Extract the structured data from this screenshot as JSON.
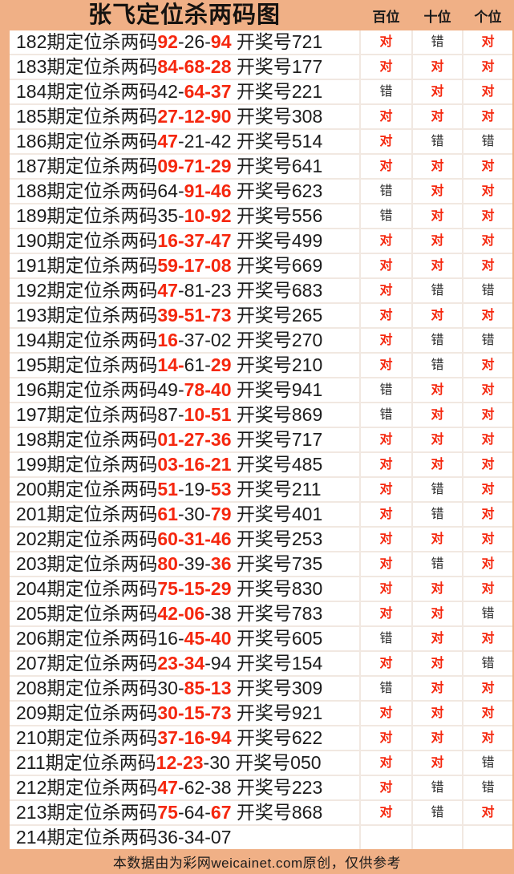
{
  "title": "张飞定位杀两码图",
  "columns": [
    {
      "key": "bai",
      "label": "百位"
    },
    {
      "key": "shi",
      "label": "十位"
    },
    {
      "key": "ge",
      "label": "个位"
    }
  ],
  "strings": {
    "kill_prefix": "期定位杀两码",
    "draw_prefix": "开奖号",
    "correct": "对",
    "wrong": "错"
  },
  "colors": {
    "background": "#f0b086",
    "cell": "#ffffff",
    "divider": "#f1e8e1",
    "red": "#f5270e",
    "text": "#1c1c1c"
  },
  "rows": [
    {
      "p": "182",
      "segs": [
        [
          "92",
          "r"
        ],
        [
          "-",
          "k"
        ],
        [
          "26",
          "k"
        ],
        [
          "-",
          "k"
        ],
        [
          "94",
          "r"
        ]
      ],
      "draw": "721",
      "res": [
        "对",
        "错",
        "对"
      ]
    },
    {
      "p": "183",
      "segs": [
        [
          "84",
          "r"
        ],
        [
          "-",
          "r"
        ],
        [
          "68",
          "r"
        ],
        [
          "-",
          "r"
        ],
        [
          "28",
          "r"
        ]
      ],
      "draw": "177",
      "res": [
        "对",
        "对",
        "对"
      ]
    },
    {
      "p": "184",
      "segs": [
        [
          "42",
          "k"
        ],
        [
          "-",
          "k"
        ],
        [
          "64",
          "r"
        ],
        [
          "-",
          "r"
        ],
        [
          "37",
          "r"
        ]
      ],
      "draw": "221",
      "res": [
        "错",
        "对",
        "对"
      ]
    },
    {
      "p": "185",
      "segs": [
        [
          "27",
          "r"
        ],
        [
          "-",
          "r"
        ],
        [
          "12",
          "r"
        ],
        [
          "-",
          "r"
        ],
        [
          "90",
          "r"
        ]
      ],
      "draw": "308",
      "res": [
        "对",
        "对",
        "对"
      ]
    },
    {
      "p": "186",
      "segs": [
        [
          "47",
          "r"
        ],
        [
          "-",
          "k"
        ],
        [
          "21",
          "k"
        ],
        [
          "-",
          "k"
        ],
        [
          "42",
          "k"
        ]
      ],
      "draw": "514",
      "res": [
        "对",
        "错",
        "错"
      ]
    },
    {
      "p": "187",
      "segs": [
        [
          "09",
          "r"
        ],
        [
          "-",
          "r"
        ],
        [
          "71",
          "r"
        ],
        [
          "-",
          "r"
        ],
        [
          "29",
          "r"
        ]
      ],
      "draw": "641",
      "res": [
        "对",
        "对",
        "对"
      ]
    },
    {
      "p": "188",
      "segs": [
        [
          "64",
          "k"
        ],
        [
          "-",
          "k"
        ],
        [
          "91",
          "r"
        ],
        [
          "-",
          "r"
        ],
        [
          "46",
          "r"
        ]
      ],
      "draw": "623",
      "res": [
        "错",
        "对",
        "对"
      ]
    },
    {
      "p": "189",
      "segs": [
        [
          "35",
          "k"
        ],
        [
          "-",
          "k"
        ],
        [
          "10",
          "r"
        ],
        [
          "-",
          "r"
        ],
        [
          "92",
          "r"
        ]
      ],
      "draw": "556",
      "res": [
        "错",
        "对",
        "对"
      ]
    },
    {
      "p": "190",
      "segs": [
        [
          "16",
          "r"
        ],
        [
          "-",
          "r"
        ],
        [
          "37",
          "r"
        ],
        [
          "-",
          "r"
        ],
        [
          "47",
          "r"
        ]
      ],
      "draw": "499",
      "res": [
        "对",
        "对",
        "对"
      ]
    },
    {
      "p": "191",
      "segs": [
        [
          "59",
          "r"
        ],
        [
          "-",
          "r"
        ],
        [
          "17",
          "r"
        ],
        [
          "-",
          "r"
        ],
        [
          "08",
          "r"
        ]
      ],
      "draw": "669",
      "res": [
        "对",
        "对",
        "对"
      ]
    },
    {
      "p": "192",
      "segs": [
        [
          "47",
          "r"
        ],
        [
          "-",
          "k"
        ],
        [
          "81",
          "k"
        ],
        [
          "-",
          "k"
        ],
        [
          "23",
          "k"
        ]
      ],
      "draw": "683",
      "res": [
        "对",
        "错",
        "错"
      ]
    },
    {
      "p": "193",
      "segs": [
        [
          "39",
          "r"
        ],
        [
          "-",
          "r"
        ],
        [
          "51",
          "r"
        ],
        [
          "-",
          "r"
        ],
        [
          "73",
          "r"
        ]
      ],
      "draw": "265",
      "res": [
        "对",
        "对",
        "对"
      ]
    },
    {
      "p": "194",
      "segs": [
        [
          "16",
          "r"
        ],
        [
          "-",
          "k"
        ],
        [
          "37",
          "k"
        ],
        [
          "-",
          "k"
        ],
        [
          "02",
          "k"
        ]
      ],
      "draw": "270",
      "res": [
        "对",
        "错",
        "错"
      ]
    },
    {
      "p": "195",
      "segs": [
        [
          "14",
          "r"
        ],
        [
          "-",
          "r"
        ],
        [
          "61",
          "k"
        ],
        [
          "-",
          "k"
        ],
        [
          "29",
          "r"
        ]
      ],
      "draw": "210",
      "res": [
        "对",
        "错",
        "对"
      ]
    },
    {
      "p": "196",
      "segs": [
        [
          "49",
          "k"
        ],
        [
          "-",
          "k"
        ],
        [
          "78",
          "r"
        ],
        [
          "-",
          "r"
        ],
        [
          "40",
          "r"
        ]
      ],
      "draw": "941",
      "res": [
        "错",
        "对",
        "对"
      ]
    },
    {
      "p": "197",
      "segs": [
        [
          "87",
          "k"
        ],
        [
          "-",
          "k"
        ],
        [
          "10",
          "r"
        ],
        [
          "-",
          "r"
        ],
        [
          "51",
          "r"
        ]
      ],
      "draw": "869",
      "res": [
        "错",
        "对",
        "对"
      ]
    },
    {
      "p": "198",
      "segs": [
        [
          "01",
          "r"
        ],
        [
          "-",
          "r"
        ],
        [
          "27",
          "r"
        ],
        [
          "-",
          "r"
        ],
        [
          "36",
          "r"
        ]
      ],
      "draw": "717",
      "res": [
        "对",
        "对",
        "对"
      ]
    },
    {
      "p": "199",
      "segs": [
        [
          "03",
          "r"
        ],
        [
          "-",
          "r"
        ],
        [
          "16",
          "r"
        ],
        [
          "-",
          "r"
        ],
        [
          "21",
          "r"
        ]
      ],
      "draw": "485",
      "res": [
        "对",
        "对",
        "对"
      ]
    },
    {
      "p": "200",
      "segs": [
        [
          "51",
          "r"
        ],
        [
          "-",
          "k"
        ],
        [
          "19",
          "k"
        ],
        [
          "-",
          "k"
        ],
        [
          "53",
          "r"
        ]
      ],
      "draw": "211",
      "res": [
        "对",
        "错",
        "对"
      ]
    },
    {
      "p": "201",
      "segs": [
        [
          "61",
          "r"
        ],
        [
          "-",
          "k"
        ],
        [
          "30",
          "k"
        ],
        [
          "-",
          "k"
        ],
        [
          "79",
          "r"
        ]
      ],
      "draw": "401",
      "res": [
        "对",
        "错",
        "对"
      ]
    },
    {
      "p": "202",
      "segs": [
        [
          "60",
          "r"
        ],
        [
          "-",
          "r"
        ],
        [
          "31",
          "r"
        ],
        [
          "-",
          "r"
        ],
        [
          "46",
          "r"
        ]
      ],
      "draw": "253",
      "res": [
        "对",
        "对",
        "对"
      ]
    },
    {
      "p": "203",
      "segs": [
        [
          "80",
          "r"
        ],
        [
          "-",
          "k"
        ],
        [
          "39",
          "k"
        ],
        [
          "-",
          "k"
        ],
        [
          "36",
          "r"
        ]
      ],
      "draw": "735",
      "res": [
        "对",
        "错",
        "对"
      ]
    },
    {
      "p": "204",
      "segs": [
        [
          "75",
          "r"
        ],
        [
          "-",
          "r"
        ],
        [
          "15",
          "r"
        ],
        [
          "-",
          "r"
        ],
        [
          "29",
          "r"
        ]
      ],
      "draw": "830",
      "res": [
        "对",
        "对",
        "对"
      ]
    },
    {
      "p": "205",
      "segs": [
        [
          "42",
          "r"
        ],
        [
          "-",
          "r"
        ],
        [
          "06",
          "r"
        ],
        [
          "-",
          "k"
        ],
        [
          "38",
          "k"
        ]
      ],
      "draw": "783",
      "res": [
        "对",
        "对",
        "错"
      ]
    },
    {
      "p": "206",
      "segs": [
        [
          "16",
          "k"
        ],
        [
          "-",
          "k"
        ],
        [
          "45",
          "r"
        ],
        [
          "-",
          "r"
        ],
        [
          "40",
          "r"
        ]
      ],
      "draw": "605",
      "res": [
        "错",
        "对",
        "对"
      ]
    },
    {
      "p": "207",
      "segs": [
        [
          "23",
          "r"
        ],
        [
          "-",
          "r"
        ],
        [
          "34",
          "r"
        ],
        [
          "-",
          "k"
        ],
        [
          "94",
          "k"
        ]
      ],
      "draw": "154",
      "res": [
        "对",
        "对",
        "错"
      ]
    },
    {
      "p": "208",
      "segs": [
        [
          "30",
          "k"
        ],
        [
          "-",
          "k"
        ],
        [
          "85",
          "r"
        ],
        [
          "-",
          "r"
        ],
        [
          "13",
          "r"
        ]
      ],
      "draw": "309",
      "res": [
        "错",
        "对",
        "对"
      ]
    },
    {
      "p": "209",
      "segs": [
        [
          "30",
          "r"
        ],
        [
          "-",
          "r"
        ],
        [
          "15",
          "r"
        ],
        [
          "-",
          "r"
        ],
        [
          "73",
          "r"
        ]
      ],
      "draw": "921",
      "res": [
        "对",
        "对",
        "对"
      ]
    },
    {
      "p": "210",
      "segs": [
        [
          "37",
          "r"
        ],
        [
          "-",
          "r"
        ],
        [
          "16",
          "r"
        ],
        [
          "-",
          "r"
        ],
        [
          "94",
          "r"
        ]
      ],
      "draw": "622",
      "res": [
        "对",
        "对",
        "对"
      ]
    },
    {
      "p": "211",
      "segs": [
        [
          "12",
          "r"
        ],
        [
          "-",
          "r"
        ],
        [
          "23",
          "r"
        ],
        [
          "-",
          "k"
        ],
        [
          "30",
          "k"
        ]
      ],
      "draw": "050",
      "res": [
        "对",
        "对",
        "错"
      ]
    },
    {
      "p": "212",
      "segs": [
        [
          "47",
          "r"
        ],
        [
          "-",
          "k"
        ],
        [
          "62",
          "k"
        ],
        [
          "-",
          "k"
        ],
        [
          "38",
          "k"
        ]
      ],
      "draw": "223",
      "res": [
        "对",
        "错",
        "错"
      ]
    },
    {
      "p": "213",
      "segs": [
        [
          "75",
          "r"
        ],
        [
          "-",
          "k"
        ],
        [
          "64",
          "k"
        ],
        [
          "-",
          "k"
        ],
        [
          "67",
          "r"
        ]
      ],
      "draw": "868",
      "res": [
        "对",
        "错",
        "对"
      ]
    },
    {
      "p": "214",
      "segs": [
        [
          "36",
          "k"
        ],
        [
          "-",
          "k"
        ],
        [
          "34",
          "k"
        ],
        [
          "-",
          "k"
        ],
        [
          "07",
          "k"
        ]
      ],
      "draw": "",
      "res": [
        "",
        "",
        ""
      ]
    }
  ],
  "footer": "本数据由为彩网weicainet.com原创，仅供参考"
}
